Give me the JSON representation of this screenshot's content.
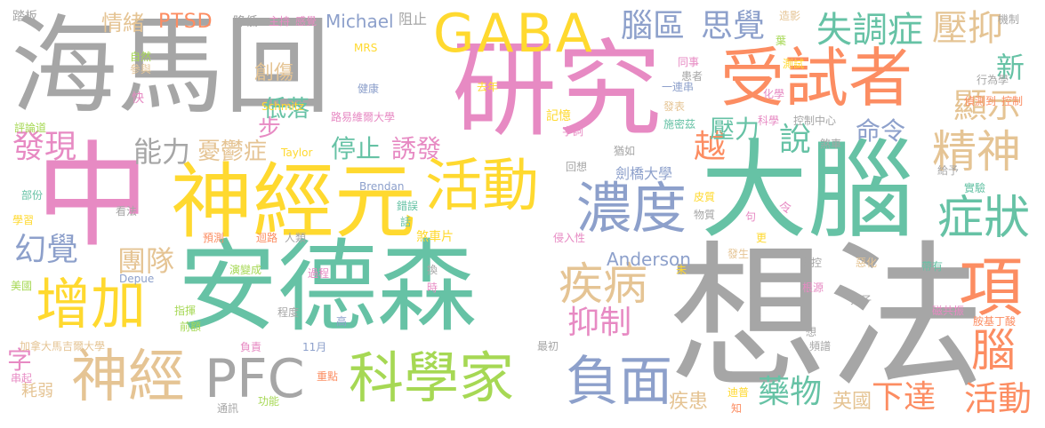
{
  "palette": {
    "gray": "#a6a6a6",
    "pink": "#e78ac3",
    "green": "#66c2a5",
    "orange": "#fc8d62",
    "blue": "#8da0cb",
    "lime": "#a6d854",
    "yellow": "#ffd92f",
    "tan": "#e5c494"
  },
  "words": [
    {
      "text": "海馬回",
      "color": "gray"
    },
    {
      "text": "研究",
      "color": "pink"
    },
    {
      "text": "GABA",
      "color": "yellow"
    },
    {
      "text": "受試者",
      "color": "orange"
    },
    {
      "text": "中",
      "color": "pink"
    },
    {
      "text": "神經元",
      "color": "yellow"
    },
    {
      "text": "活動",
      "color": "yellow"
    },
    {
      "text": "大腦",
      "color": "green"
    },
    {
      "text": "安德森",
      "color": "green"
    },
    {
      "text": "想法",
      "color": "gray"
    },
    {
      "text": "濃度",
      "color": "blue"
    },
    {
      "text": "科學家",
      "color": "lime"
    },
    {
      "text": "PFC",
      "color": "gray"
    },
    {
      "text": "神經",
      "color": "tan"
    },
    {
      "text": "增加",
      "color": "yellow"
    },
    {
      "text": "負面",
      "color": "blue"
    },
    {
      "text": "疾病",
      "color": "tan"
    },
    {
      "text": "腦區",
      "color": "blue"
    },
    {
      "text": "思覺",
      "color": "blue"
    },
    {
      "text": "失調症",
      "color": "green"
    },
    {
      "text": "壓抑",
      "color": "tan"
    },
    {
      "text": "精神",
      "color": "tan"
    },
    {
      "text": "症狀",
      "color": "green"
    },
    {
      "text": "項",
      "color": "orange"
    },
    {
      "text": "腦",
      "color": "orange"
    },
    {
      "text": "活動",
      "color": "orange"
    },
    {
      "text": "藥物",
      "color": "green"
    },
    {
      "text": "下達",
      "color": "orange"
    },
    {
      "text": "顯示",
      "color": "tan"
    },
    {
      "text": "新",
      "color": "green"
    },
    {
      "text": "說",
      "color": "green"
    },
    {
      "text": "命令",
      "color": "blue"
    },
    {
      "text": "越",
      "color": "orange"
    },
    {
      "text": "壓力",
      "color": "green"
    },
    {
      "text": "抑制",
      "color": "pink"
    },
    {
      "text": "發現",
      "color": "pink"
    },
    {
      "text": "能力",
      "color": "gray"
    },
    {
      "text": "憂鬱症",
      "color": "tan"
    },
    {
      "text": "停止",
      "color": "green"
    },
    {
      "text": "誘發",
      "color": "pink"
    },
    {
      "text": "幻覺",
      "color": "blue"
    },
    {
      "text": "團隊",
      "color": "tan"
    },
    {
      "text": "低落",
      "color": "green"
    },
    {
      "text": "創傷",
      "color": "tan"
    },
    {
      "text": "步",
      "color": "pink"
    },
    {
      "text": "情緒",
      "color": "tan"
    },
    {
      "text": "PTSD",
      "color": "orange"
    },
    {
      "text": "Michael",
      "color": "blue"
    },
    {
      "text": "字",
      "color": "pink"
    },
    {
      "text": "耗弱",
      "color": "tan"
    },
    {
      "text": "英國",
      "color": "tan"
    },
    {
      "text": "疾患",
      "color": "tan"
    },
    {
      "text": "Anderson",
      "color": "blue"
    },
    {
      "text": "劍橋大學",
      "color": "blue"
    },
    {
      "text": "路易維爾大學",
      "color": "pink"
    },
    {
      "text": "降低",
      "color": "gray"
    },
    {
      "text": "主持",
      "color": "pink"
    },
    {
      "text": "感覺",
      "color": "pink"
    },
    {
      "text": "阻止",
      "color": "gray"
    },
    {
      "text": "踏板",
      "color": "gray"
    },
    {
      "text": "自然",
      "color": "lime"
    },
    {
      "text": "參與",
      "color": "tan"
    },
    {
      "text": "快",
      "color": "pink"
    },
    {
      "text": "評論道",
      "color": "lime"
    },
    {
      "text": "部份",
      "color": "green"
    },
    {
      "text": "學習",
      "color": "yellow"
    },
    {
      "text": "美國",
      "color": "lime"
    },
    {
      "text": "加拿大馬吉爾大學",
      "color": "tan"
    },
    {
      "text": "串起",
      "color": "pink"
    },
    {
      "text": "MRS",
      "color": "yellow"
    },
    {
      "text": "健康",
      "color": "blue"
    },
    {
      "text": "Schmitz",
      "color": "yellow"
    },
    {
      "text": "Taylor",
      "color": "yellow"
    },
    {
      "text": "Brendan",
      "color": "blue"
    },
    {
      "text": "Depue",
      "color": "blue"
    },
    {
      "text": "看法",
      "color": "gray"
    },
    {
      "text": "預測",
      "color": "orange"
    },
    {
      "text": "迴路",
      "color": "orange"
    },
    {
      "text": "人類",
      "color": "gray"
    },
    {
      "text": "演變成",
      "color": "lime"
    },
    {
      "text": "過程",
      "color": "pink"
    },
    {
      "text": "指揮",
      "color": "lime"
    },
    {
      "text": "前額",
      "color": "lime"
    },
    {
      "text": "程度",
      "color": "gray"
    },
    {
      "text": "高",
      "color": "blue"
    },
    {
      "text": "11月",
      "color": "blue"
    },
    {
      "text": "負責",
      "color": "pink"
    },
    {
      "text": "重點",
      "color": "orange"
    },
    {
      "text": "通訊",
      "color": "gray"
    },
    {
      "text": "功能",
      "color": "lime"
    },
    {
      "text": "最初",
      "color": "gray"
    },
    {
      "text": "去年",
      "color": "yellow"
    },
    {
      "text": "記憶",
      "color": "yellow"
    },
    {
      "text": "字詞",
      "color": "pink"
    },
    {
      "text": "回想",
      "color": "gray"
    },
    {
      "text": "錯誤",
      "color": "green"
    },
    {
      "text": "話",
      "color": "green"
    },
    {
      "text": "煞車片",
      "color": "yellow"
    },
    {
      "text": "換",
      "color": "gray"
    },
    {
      "text": "時",
      "color": "pink"
    },
    {
      "text": "侵入性",
      "color": "pink"
    },
    {
      "text": "發表",
      "color": "tan"
    },
    {
      "text": "施密茲",
      "color": "green"
    },
    {
      "text": "猶如",
      "color": "gray"
    },
    {
      "text": "一連串",
      "color": "blue"
    },
    {
      "text": "同事",
      "color": "pink"
    },
    {
      "text": "患者",
      "color": "gray"
    },
    {
      "text": "化學",
      "color": "pink"
    },
    {
      "text": "科學",
      "color": "pink"
    },
    {
      "text": "控制中心",
      "color": "gray"
    },
    {
      "text": "煞車",
      "color": "gray"
    },
    {
      "text": "造影",
      "color": "tan"
    },
    {
      "text": "葉",
      "color": "lime"
    },
    {
      "text": "測試",
      "color": "yellow"
    },
    {
      "text": "機制",
      "color": "gray"
    },
    {
      "text": "行為學",
      "color": "gray"
    },
    {
      "text": "偵測到",
      "color": "orange"
    },
    {
      "text": "控制",
      "color": "orange"
    },
    {
      "text": "給予",
      "color": "gray"
    },
    {
      "text": "實驗",
      "color": "green"
    },
    {
      "text": "皮質",
      "color": "yellow"
    },
    {
      "text": "物質",
      "color": "gray"
    },
    {
      "text": "句",
      "color": "pink"
    },
    {
      "text": "令",
      "color": "pink"
    },
    {
      "text": "更",
      "color": "yellow"
    },
    {
      "text": "發生",
      "color": "tan"
    },
    {
      "text": "調控",
      "color": "gray"
    },
    {
      "text": "惡化",
      "color": "tan"
    },
    {
      "text": "帶有",
      "color": "green"
    },
    {
      "text": "根源",
      "color": "pink"
    },
    {
      "text": "分子",
      "color": "gray"
    },
    {
      "text": "磁共振",
      "color": "pink"
    },
    {
      "text": "胺基丁酸",
      "color": "orange"
    },
    {
      "text": "想",
      "color": "gray"
    },
    {
      "text": "頻譜",
      "color": "gray"
    },
    {
      "text": "迪普",
      "color": "yellow"
    },
    {
      "text": "知",
      "color": "orange"
    },
    {
      "text": "未",
      "color": "yellow"
    }
  ]
}
